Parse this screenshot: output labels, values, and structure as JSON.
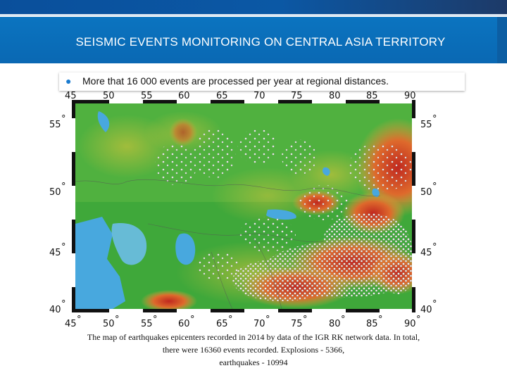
{
  "header": {
    "title": "SEISMIC EVENTS MONITORING ON CENTRAL ASIA TERRITORY"
  },
  "bullet": {
    "symbol": "●",
    "text": "More that 16 000 events are processed per year at regional distances."
  },
  "map": {
    "longitude_labels": [
      "45",
      "50",
      "55",
      "60",
      "65",
      "70",
      "75",
      "80",
      "85",
      "90"
    ],
    "latitude_labels": [
      "55",
      "50",
      "45",
      "40"
    ],
    "degree_symbol": "°",
    "colors": {
      "land": "#3fa83a",
      "water": "#48a8de",
      "mountains": "#d2402d",
      "events": "#f4f4f4"
    }
  },
  "caption": {
    "line1": "The map of earthquakes epicenters recorded in 2014 by data of the IGR RK network data. In total,",
    "line2": "there were 16360 events recorded. Explosions - 5366,",
    "line3": "earthquakes - 10994"
  }
}
